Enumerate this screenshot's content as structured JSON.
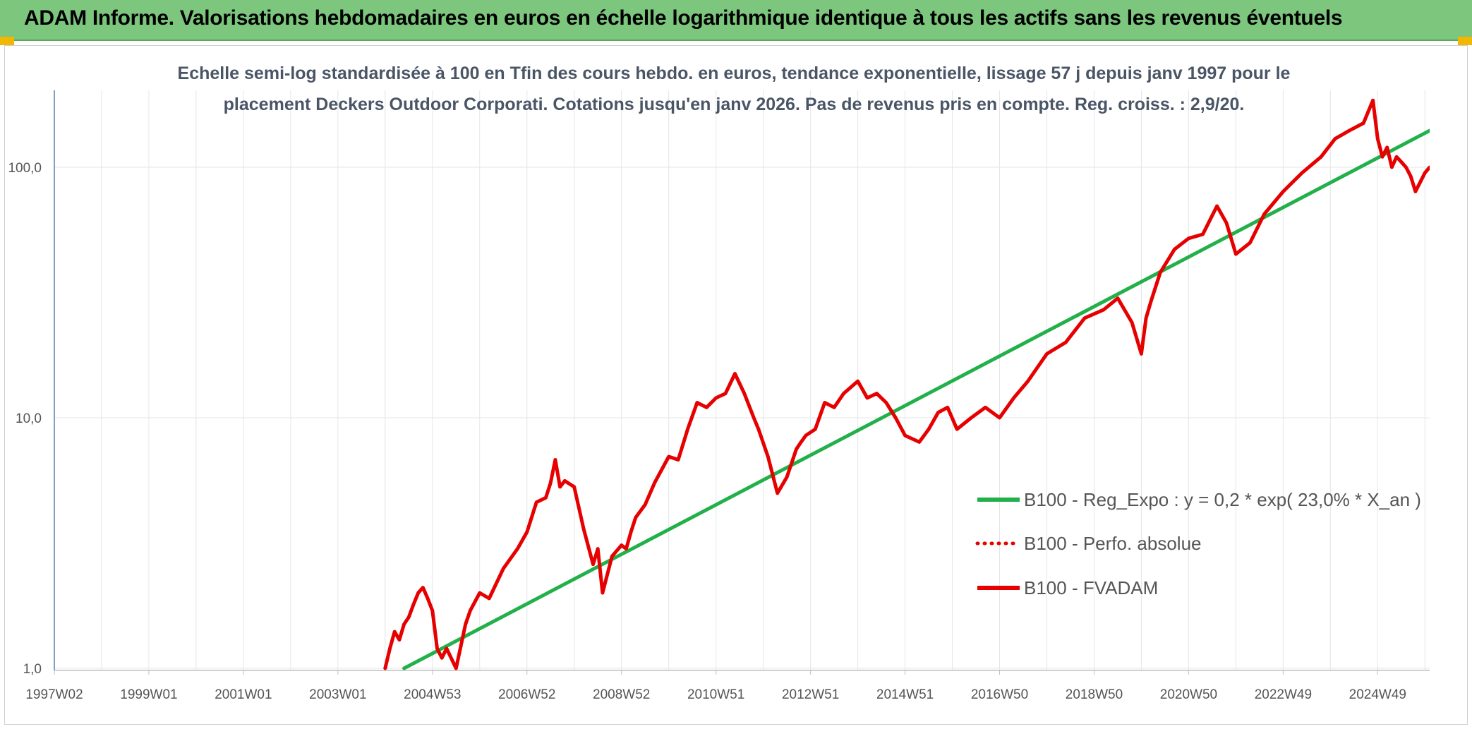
{
  "header": {
    "title": "ADAM Informe. Valorisations hebdomadaires en euros en échelle logarithmique identique à tous les actifs sans les revenus éventuels"
  },
  "chart_data": {
    "type": "line",
    "title_line1": "Echelle semi-log standardisée à 100 en Tfin des cours hebdo. en euros, tendance exponentielle, lissage 57 j depuis janv 1997 pour le",
    "title_line2": "placement Deckers Outdoor Corporati. Cotations jusqu'en janv 2026. Pas de revenus pris en compte. Reg. croiss. : 2,9/20.",
    "y_scale": "log",
    "ylim": [
      1,
      190
    ],
    "y_ticks": [
      {
        "value": 1,
        "label": "1,0"
      },
      {
        "value": 10,
        "label": "10,0"
      },
      {
        "value": 100,
        "label": "100,0"
      }
    ],
    "xlim": [
      1997.0,
      2026.1
    ],
    "x_ticks": [
      {
        "x": 1997.0,
        "label": "1997W02"
      },
      {
        "x": 1999.0,
        "label": "1999W01"
      },
      {
        "x": 2001.0,
        "label": "2001W01"
      },
      {
        "x": 2003.0,
        "label": "2003W01"
      },
      {
        "x": 2005.0,
        "label": "2004W53"
      },
      {
        "x": 2007.0,
        "label": "2006W52"
      },
      {
        "x": 2009.0,
        "label": "2008W52"
      },
      {
        "x": 2011.0,
        "label": "2010W51"
      },
      {
        "x": 2013.0,
        "label": "2012W51"
      },
      {
        "x": 2015.0,
        "label": "2014W51"
      },
      {
        "x": 2017.0,
        "label": "2016W50"
      },
      {
        "x": 2019.0,
        "label": "2018W50"
      },
      {
        "x": 2021.0,
        "label": "2020W50"
      },
      {
        "x": 2023.0,
        "label": "2022W49"
      },
      {
        "x": 2025.0,
        "label": "2024W49"
      }
    ],
    "grid": true,
    "legend_position": "right-middle",
    "series": [
      {
        "name": "B100 - Reg_Expo : y = 0,2 * exp( 23,0% *  X_an )",
        "color": "#22b04a",
        "style": "solid",
        "x": [
          2004.4,
          2026.1
        ],
        "y": [
          1.0,
          140
        ]
      },
      {
        "name": "B100 - Perfo. absolue",
        "color": "#e60000",
        "style": "dotted",
        "x": [],
        "y": []
      },
      {
        "name": "B100 - FVADAM",
        "color": "#e60000",
        "style": "solid",
        "x": [
          2004.0,
          2004.1,
          2004.2,
          2004.3,
          2004.4,
          2004.5,
          2004.6,
          2004.7,
          2004.8,
          2004.9,
          2005.0,
          2005.1,
          2005.2,
          2005.3,
          2005.5,
          2005.7,
          2005.8,
          2006.0,
          2006.2,
          2006.5,
          2006.8,
          2007.0,
          2007.2,
          2007.4,
          2007.5,
          2007.6,
          2007.7,
          2007.8,
          2008.0,
          2008.2,
          2008.4,
          2008.5,
          2008.6,
          2008.8,
          2009.0,
          2009.1,
          2009.2,
          2009.3,
          2009.5,
          2009.7,
          2010.0,
          2010.2,
          2010.4,
          2010.6,
          2010.8,
          2011.0,
          2011.2,
          2011.4,
          2011.6,
          2011.8,
          2011.9,
          2012.1,
          2012.3,
          2012.5,
          2012.7,
          2012.8,
          2012.9,
          2013.1,
          2013.3,
          2013.5,
          2013.7,
          2014.0,
          2014.2,
          2014.4,
          2014.6,
          2014.8,
          2015.0,
          2015.3,
          2015.5,
          2015.7,
          2015.9,
          2016.1,
          2016.4,
          2016.7,
          2017.0,
          2017.3,
          2017.6,
          2018.0,
          2018.4,
          2018.8,
          2019.2,
          2019.5,
          2019.8,
          2020.0,
          2020.1,
          2020.2,
          2020.4,
          2020.7,
          2021.0,
          2021.3,
          2021.6,
          2021.8,
          2022.0,
          2022.3,
          2022.6,
          2023.0,
          2023.4,
          2023.8,
          2024.1,
          2024.4,
          2024.7,
          2024.9,
          2025.0,
          2025.1,
          2025.2,
          2025.3,
          2025.4,
          2025.5,
          2025.6,
          2025.7,
          2025.8,
          2026.0,
          2026.1
        ],
        "y": [
          1.0,
          1.2,
          1.4,
          1.3,
          1.5,
          1.6,
          1.8,
          2.0,
          2.1,
          1.9,
          1.7,
          1.2,
          1.1,
          1.2,
          1.0,
          1.5,
          1.7,
          2.0,
          1.9,
          2.5,
          3.0,
          3.5,
          4.6,
          4.8,
          5.5,
          6.8,
          5.3,
          5.6,
          5.3,
          3.6,
          2.6,
          3.0,
          2.0,
          2.8,
          3.1,
          3.0,
          3.5,
          4.0,
          4.5,
          5.5,
          7.0,
          6.8,
          9.0,
          11.5,
          11.0,
          12.0,
          12.5,
          15.0,
          12.5,
          10.0,
          9.0,
          7.0,
          5.0,
          5.8,
          7.5,
          8.0,
          8.5,
          9.0,
          11.5,
          11.0,
          12.5,
          14.0,
          12.0,
          12.5,
          11.5,
          10.0,
          8.5,
          8.0,
          9.0,
          10.5,
          11.0,
          9.0,
          10.0,
          11.0,
          10.0,
          12.0,
          14.0,
          18.0,
          20.0,
          25.0,
          27.0,
          30.0,
          24.0,
          18.0,
          25.0,
          29.0,
          38.0,
          47.0,
          52.0,
          54.0,
          70.0,
          60.0,
          45.0,
          50.0,
          65.0,
          80.0,
          95.0,
          110.0,
          130.0,
          140.0,
          150.0,
          185.0,
          130.0,
          110.0,
          120.0,
          100.0,
          110.0,
          105.0,
          100.0,
          92.0,
          80.0,
          95.0,
          100.0
        ]
      }
    ]
  }
}
